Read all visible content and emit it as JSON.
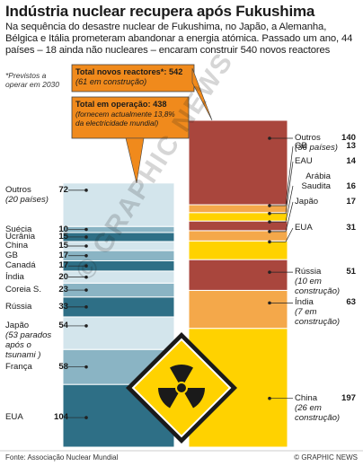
{
  "title": "Indústria nuclear recupera após Fukushima",
  "subtitle": "Na sequência do desastre nuclear de Fukushima, no Japão, a Alemanha, Bélgica e Itália prometeram abandonar a energia atómica. Passado um ano, 44 países – 18 ainda não nucleares – encaram construir 540 novos reactores",
  "note": "*Previstos a operar em 2030",
  "footer": "Fonte: Associação Nuclear Mundial",
  "credit": "© GRAPHIC NEWS",
  "watermark": "© GRAPHIC NEWS",
  "colors": {
    "operating": [
      "#2e6f86",
      "#8ab4c4",
      "#d3e5ec"
    ],
    "planned": [
      "#ffd200",
      "#f4a84a",
      "#a9463d"
    ],
    "accent": "#f08a1c"
  },
  "chart_data": [
    {
      "type": "bar",
      "stacked": true,
      "title": "Total em operação: 438",
      "annotation": "(fornecem actualmente 13,8% da electricidade mundial)",
      "total": 438,
      "categories": [
        "EUA",
        "França",
        "Japão",
        "Rússia",
        "Coreia S.",
        "Índia",
        "Canadá",
        "GB",
        "China",
        "Ucrânia",
        "Suécia",
        "Outros"
      ],
      "values": [
        104,
        58,
        54,
        33,
        23,
        20,
        17,
        17,
        15,
        15,
        10,
        72
      ],
      "label_notes": {
        "Japão": "(53 parados após o tsunami )",
        "Outros": "(20 países)"
      }
    },
    {
      "type": "bar",
      "stacked": true,
      "title": "Total novos reactores*: 542",
      "annotation": "(61 em construção)",
      "total": 542,
      "categories": [
        "China",
        "Índia",
        "Rússia",
        "EUA",
        "Japão",
        "Arábia Saudita",
        "EAU",
        "GB",
        "Outros"
      ],
      "values": [
        197,
        63,
        51,
        31,
        17,
        16,
        14,
        13,
        140
      ],
      "label_notes": {
        "China": "(26 em construção)",
        "Índia": "(7 em construção)",
        "Rússia": "(10 em construção)",
        "Outros": "(36 países)"
      }
    }
  ]
}
